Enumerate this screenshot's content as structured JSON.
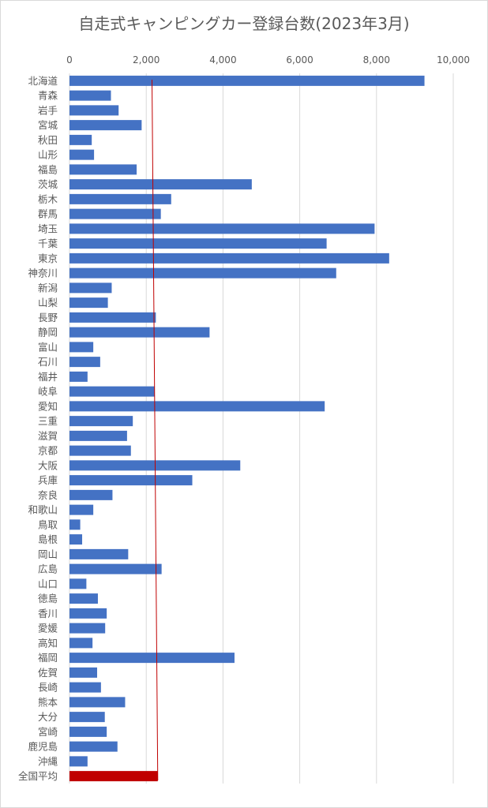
{
  "chart_data": {
    "type": "bar",
    "orientation": "horizontal",
    "title": "自走式キャンピングカー登録台数(2023年3月)",
    "xlim": [
      0,
      10000
    ],
    "xticks": [
      "0",
      "2,000",
      "4,000",
      "6,000",
      "8,000",
      "10,000"
    ],
    "xtick_values": [
      0,
      2000,
      4000,
      6000,
      8000,
      10000
    ],
    "x_axis_position": "top",
    "grid": true,
    "categories": [
      "北海道",
      "青森",
      "岩手",
      "宮城",
      "秋田",
      "山形",
      "福島",
      "茨城",
      "栃木",
      "群馬",
      "埼玉",
      "千葉",
      "東京",
      "神奈川",
      "新潟",
      "山梨",
      "長野",
      "静岡",
      "富山",
      "石川",
      "福井",
      "岐阜",
      "愛知",
      "三重",
      "滋賀",
      "京都",
      "大阪",
      "兵庫",
      "奈良",
      "和歌山",
      "鳥取",
      "島根",
      "岡山",
      "広島",
      "山口",
      "徳島",
      "香川",
      "愛媛",
      "高知",
      "福岡",
      "佐賀",
      "長崎",
      "熊本",
      "大分",
      "宮崎",
      "鹿児島",
      "沖縄",
      "全国平均"
    ],
    "values": [
      9250,
      1080,
      1280,
      1880,
      580,
      640,
      1750,
      4750,
      2650,
      2380,
      7950,
      6700,
      8330,
      6950,
      1100,
      1000,
      2250,
      3650,
      620,
      800,
      470,
      2220,
      6650,
      1650,
      1500,
      1600,
      4450,
      3200,
      1120,
      620,
      280,
      330,
      1530,
      2400,
      440,
      740,
      970,
      930,
      600,
      4300,
      720,
      820,
      1450,
      920,
      970,
      1250,
      470,
      2300
    ],
    "bar_color": "#4472c4",
    "highlight_color": "#c00000",
    "average_line": {
      "value_top": 2150,
      "value_bottom": 2300,
      "color": "#c00000"
    }
  }
}
